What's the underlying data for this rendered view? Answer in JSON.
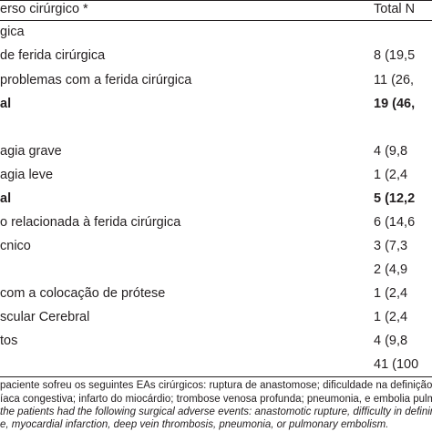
{
  "header": {
    "label": "erso cirúrgico *",
    "total": "Total N"
  },
  "rows": [
    {
      "label": "gica",
      "value": ""
    },
    {
      "label": " de ferida cirúrgica",
      "value": "8 (19,5"
    },
    {
      "label": "problemas com a ferida cirúrgica",
      "value": "11 (26,"
    },
    {
      "label": "al",
      "value": "19 (46,"
    },
    {
      "label": "",
      "value": ""
    },
    {
      "label": "agia grave",
      "value": "4 (9,8"
    },
    {
      "label": "agia leve",
      "value": "1 (2,4"
    },
    {
      "label": "al",
      "value": "5 (12,2"
    },
    {
      "label": "o relacionada à ferida cirúrgica",
      "value": "6 (14,6"
    },
    {
      "label": "cnico",
      "value": "3 (7,3"
    },
    {
      "label": "",
      "value": "2 (4,9"
    },
    {
      "label": "com a colocação de prótese",
      "value": "1 (2,4"
    },
    {
      "label": "scular Cerebral",
      "value": "1 (2,4"
    },
    {
      "label": "tos",
      "value": "4 (9,8"
    },
    {
      "label": "",
      "value": "41 (100"
    }
  ],
  "footnotes": [
    " paciente sofreu os seguintes EAs cirúrgicos: ruptura de anastomose; dificuldade na definição",
    "íaca congestiva; infarto do miocárdio; trombose venosa profunda; pneumonia, e embolia pulm",
    "the patients had the following surgical adverse events: anastomotic rupture, difficulty in defining a",
    "e, myocardial infarction, deep vein thrombosis, pneumonia, or pulmonary embolism."
  ]
}
